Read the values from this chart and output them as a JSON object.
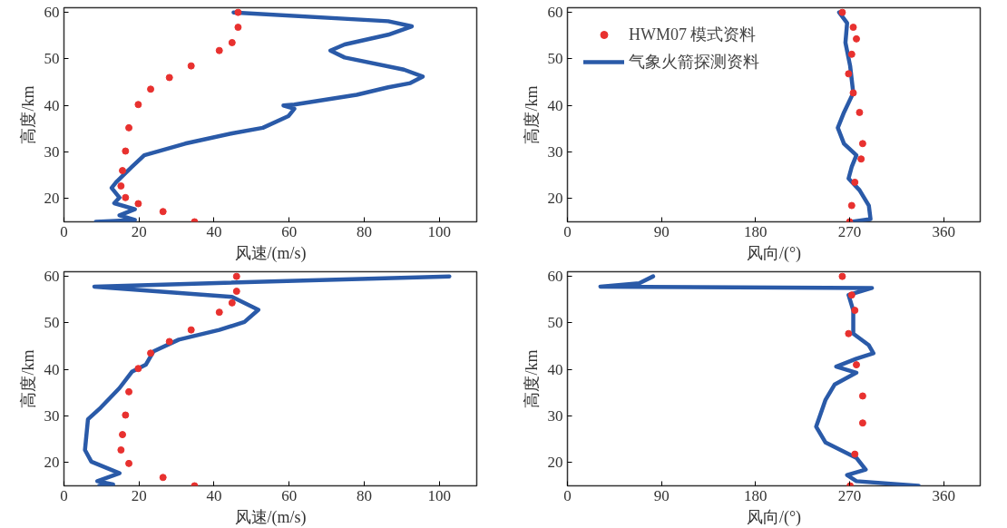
{
  "chart_data": [
    {
      "type": "line",
      "xlabel": "风速/(m/s)",
      "ylabel": "高度/km",
      "xlim": [
        0,
        110
      ],
      "ylim": [
        15,
        61
      ],
      "xticks": [
        0,
        20,
        40,
        60,
        80,
        100
      ],
      "yticks": [
        20,
        30,
        40,
        50,
        60
      ],
      "grid": false,
      "legend": false,
      "series": [
        {
          "type": "scatter",
          "marker": "circle",
          "color": "#e8312f",
          "x": [
            46.4,
            46.4,
            44.8,
            41.4,
            33.9,
            28.1,
            23.1,
            19.8,
            17.3,
            16.4,
            15.6,
            15.2,
            16.4,
            19.8,
            26.4,
            34.8
          ],
          "values": [
            60,
            56.8,
            53.5,
            51.8,
            48.5,
            46,
            43.5,
            40.2,
            35.2,
            30.2,
            26,
            22.7,
            20.2,
            18.9,
            17.2,
            15
          ]
        },
        {
          "line_style": "solid",
          "color": "#2a5aa8",
          "x": [
            45.2,
            86.4,
            92.7,
            86.4,
            74.8,
            71,
            74.8,
            90.6,
            95.6,
            92.3,
            86.4,
            78,
            61.4,
            58.5,
            61.4,
            59.8,
            53,
            44.8,
            32.3,
            21.4,
            18.1,
            13.9,
            12.7,
            14.8,
            13.4,
            18.9,
            14.8,
            18.9,
            8.5
          ],
          "values": [
            60,
            58.1,
            57,
            55.2,
            53.1,
            51.8,
            50.3,
            47.7,
            46.2,
            44.8,
            43.9,
            42.3,
            40.2,
            40,
            39.3,
            37.7,
            35.2,
            34,
            31.8,
            29.3,
            26.8,
            23.5,
            22.3,
            20.2,
            19,
            17.7,
            16.4,
            15.4,
            15
          ]
        }
      ]
    },
    {
      "type": "line",
      "xlabel": "风向/(°)",
      "ylabel": "高度/km",
      "xlim": [
        0,
        395
      ],
      "ylim": [
        15,
        61
      ],
      "xticks": [
        0,
        90,
        180,
        270,
        360
      ],
      "yticks": [
        20,
        30,
        40,
        50,
        60
      ],
      "grid": false,
      "legend": "top left",
      "series": [
        {
          "type": "scatter",
          "marker": "circle",
          "name": "HWM07 模式资料",
          "color": "#e8312f",
          "x": [
            263,
            273.5,
            276.5,
            272,
            269,
            273.5,
            279.5,
            282.5,
            281,
            275,
            272,
            270
          ],
          "values": [
            60,
            56.8,
            54.3,
            51,
            46.8,
            42.7,
            38.5,
            31.8,
            28.5,
            23.5,
            18.5,
            15
          ]
        },
        {
          "line_style": "solid",
          "name": "气象火箭探测资料",
          "color": "#2a5aa8",
          "x": [
            260,
            267.6,
            266,
            270.5,
            273.5,
            264.6,
            258.7,
            264.6,
            276.5,
            272,
            269,
            279.5,
            288.4,
            290,
            272
          ],
          "values": [
            60,
            57.7,
            53.5,
            48.5,
            42.7,
            38.5,
            35.2,
            31.8,
            29.3,
            26.8,
            24.3,
            21.8,
            18.5,
            15.6,
            15
          ]
        }
      ]
    },
    {
      "type": "line",
      "xlabel": "风速/(m/s)",
      "ylabel": "高度/km",
      "xlim": [
        0,
        110
      ],
      "ylim": [
        15,
        61
      ],
      "xticks": [
        0,
        20,
        40,
        60,
        80,
        100
      ],
      "yticks": [
        20,
        30,
        40,
        50,
        60
      ],
      "grid": false,
      "legend": false,
      "series": [
        {
          "type": "scatter",
          "marker": "circle",
          "color": "#e8312f",
          "x": [
            46,
            46,
            44.8,
            41.4,
            33.9,
            28.1,
            23.1,
            19.8,
            17.3,
            16.4,
            15.6,
            15.2,
            17.3,
            26.4,
            34.8
          ],
          "values": [
            60,
            56.8,
            54.3,
            52.3,
            48.5,
            46,
            43.5,
            40.2,
            35.2,
            30.2,
            26,
            22.7,
            19.8,
            16.8,
            15
          ]
        },
        {
          "line_style": "solid",
          "color": "#2a5aa8",
          "x": [
            102.7,
            8.1,
            44.8,
            51.8,
            48.1,
            41.4,
            30.6,
            23.9,
            21.8,
            18.1,
            14.8,
            9.8,
            6.4,
            5.6,
            7.3,
            14.8,
            8.9,
            13.1,
            9.4
          ],
          "values": [
            60,
            57.8,
            55.6,
            52.8,
            50.2,
            48.5,
            46.4,
            43.9,
            41,
            39.5,
            36,
            31.8,
            29.3,
            22.7,
            20.2,
            17.7,
            16,
            15.3,
            15
          ]
        }
      ]
    },
    {
      "type": "line",
      "xlabel": "风向/(°)",
      "ylabel": "高度/km",
      "xlim": [
        0,
        395
      ],
      "ylim": [
        15,
        61
      ],
      "xticks": [
        0,
        90,
        180,
        270,
        360
      ],
      "yticks": [
        20,
        30,
        40,
        50,
        60
      ],
      "grid": false,
      "legend": false,
      "series": [
        {
          "type": "scatter",
          "marker": "circle",
          "color": "#e8312f",
          "x": [
            263,
            272,
            275,
            269,
            276.5,
            282.5,
            282.5,
            275,
            270.5
          ],
          "values": [
            60,
            56,
            52.7,
            47.7,
            41,
            34.3,
            28.5,
            21.8,
            15
          ]
        },
        {
          "line_style": "solid",
          "color": "#2a5aa8",
          "x": [
            82,
            68.6,
            31.5,
            291.4,
            269,
            273.5,
            273.5,
            288.4,
            292.8,
            276.5,
            257.2,
            276.5,
            255.8,
            247,
            238,
            247,
            276.5,
            285.4,
            267.6,
            276.5,
            336
          ],
          "values": [
            60,
            58.5,
            57.8,
            57.5,
            56,
            52.7,
            47.7,
            45.2,
            43.5,
            42.3,
            40.6,
            39.3,
            36.8,
            33.5,
            27.7,
            24.3,
            21,
            18.5,
            17.3,
            16,
            15
          ]
        }
      ]
    }
  ]
}
